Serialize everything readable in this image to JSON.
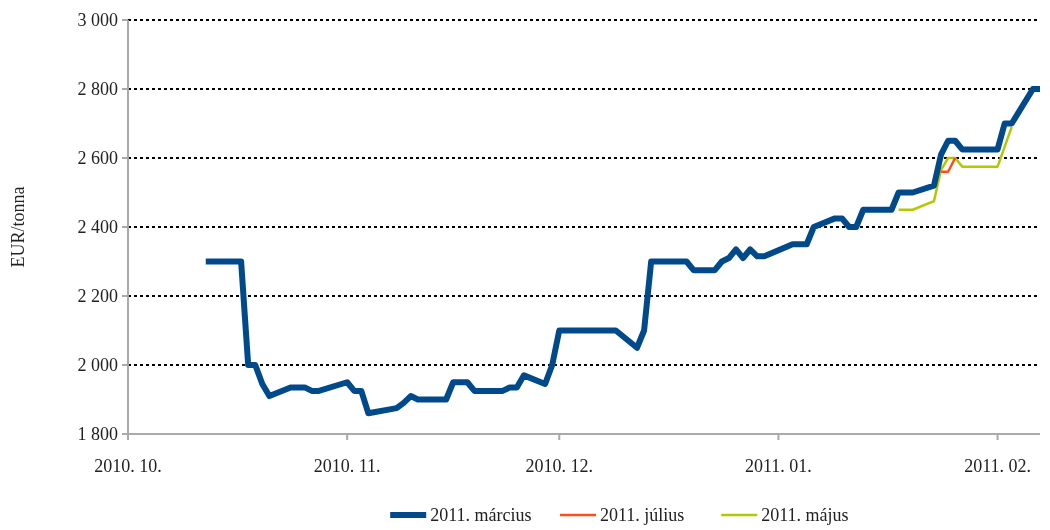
{
  "chart_data": {
    "type": "line",
    "ylabel": "EUR/tonna",
    "xlim": [
      "2010-10-01",
      "2011-02-07"
    ],
    "xticks": [
      {
        "value": "2010-10-01",
        "label": "2010. 10."
      },
      {
        "value": "2010-11-01",
        "label": "2010. 11."
      },
      {
        "value": "2010-12-01",
        "label": "2010. 12."
      },
      {
        "value": "2011-01-01",
        "label": "2011. 01."
      },
      {
        "value": "2011-02-01",
        "label": "2011. 02."
      }
    ],
    "ylim": [
      1800,
      3000
    ],
    "yticks": [
      {
        "value": 1800,
        "label": "1 800"
      },
      {
        "value": 2000,
        "label": "2 000"
      },
      {
        "value": 2200,
        "label": "2 200"
      },
      {
        "value": 2400,
        "label": "2 400"
      },
      {
        "value": 2600,
        "label": "2 600"
      },
      {
        "value": 2800,
        "label": "2 800"
      },
      {
        "value": 3000,
        "label": "3 000"
      }
    ],
    "grid": "y",
    "legend": "bottom",
    "line_style": "solid",
    "marker": "none",
    "series": [
      {
        "name": "2011. május",
        "color": "#b2c800",
        "x": [
          "2011-01-18",
          "2011-01-20",
          "2011-01-23",
          "2011-01-24",
          "2011-01-25",
          "2011-01-26",
          "2011-01-27",
          "2011-02-01",
          "2011-02-03"
        ],
        "values": [
          2450,
          2450,
          2475,
          2565,
          2600,
          2600,
          2575,
          2575,
          2690
        ]
      },
      {
        "name": "2011. július",
        "color": "#ff4e17",
        "x": [
          "2011-01-24",
          "2011-01-25",
          "2011-01-26"
        ],
        "values": [
          2560,
          2560,
          2600
        ]
      },
      {
        "name": "2011. március",
        "color": "#004a8c",
        "x": [
          "2010-10-12",
          "2010-10-17",
          "2010-10-18",
          "2010-10-19",
          "2010-10-20",
          "2010-10-21",
          "2010-10-24",
          "2010-10-26",
          "2010-10-27",
          "2010-10-28",
          "2010-11-01",
          "2010-11-02",
          "2010-11-03",
          "2010-11-04",
          "2010-11-08",
          "2010-11-09",
          "2010-11-10",
          "2010-11-11",
          "2010-11-15",
          "2010-11-16",
          "2010-11-18",
          "2010-11-19",
          "2010-11-23",
          "2010-11-24",
          "2010-11-25",
          "2010-11-26",
          "2010-11-29",
          "2010-11-30",
          "2010-12-01",
          "2010-12-09",
          "2010-12-12",
          "2010-12-13",
          "2010-12-14",
          "2010-12-19",
          "2010-12-20",
          "2010-12-23",
          "2010-12-24",
          "2010-12-25",
          "2010-12-26",
          "2010-12-27",
          "2010-12-28",
          "2010-12-29",
          "2010-12-30",
          "2011-01-03",
          "2011-01-05",
          "2011-01-06",
          "2011-01-09",
          "2011-01-10",
          "2011-01-11",
          "2011-01-12",
          "2011-01-13",
          "2011-01-17",
          "2011-01-18",
          "2011-01-20",
          "2011-01-23",
          "2011-01-24",
          "2011-01-25",
          "2011-01-26",
          "2011-01-27",
          "2011-02-01",
          "2011-02-02",
          "2011-02-03",
          "2011-02-06",
          "2011-02-07"
        ],
        "values": [
          2300,
          2300,
          2000,
          2000,
          1945,
          1910,
          1935,
          1935,
          1925,
          1925,
          1950,
          1925,
          1925,
          1860,
          1875,
          1890,
          1910,
          1900,
          1900,
          1950,
          1950,
          1925,
          1925,
          1935,
          1935,
          1970,
          1945,
          2000,
          2100,
          2100,
          2050,
          2100,
          2300,
          2300,
          2275,
          2275,
          2300,
          2310,
          2335,
          2310,
          2335,
          2315,
          2315,
          2350,
          2350,
          2400,
          2425,
          2425,
          2400,
          2400,
          2450,
          2450,
          2500,
          2500,
          2520,
          2610,
          2650,
          2650,
          2625,
          2625,
          2700,
          2700,
          2800,
          2800
        ]
      }
    ]
  }
}
